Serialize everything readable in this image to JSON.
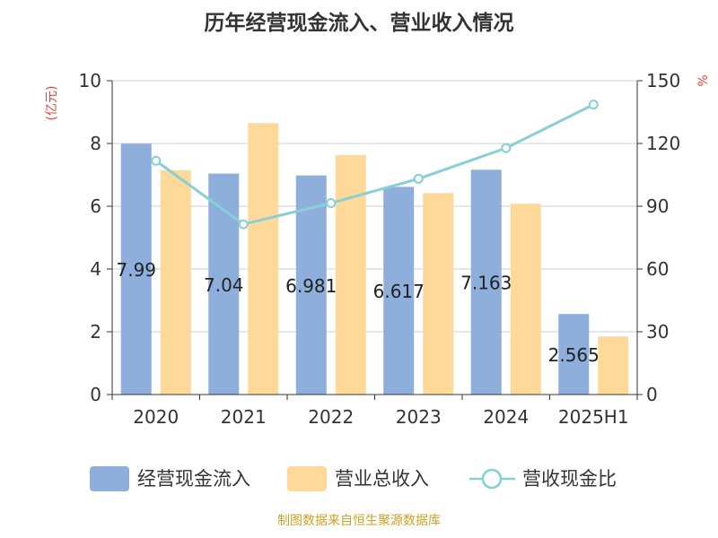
{
  "chart_data": {
    "type": "bar",
    "title": "历年经营现金流入、营业收入情况",
    "categories": [
      "2020",
      "2021",
      "2022",
      "2023",
      "2024",
      "2025H1"
    ],
    "left_axis": {
      "unit": "(亿元)",
      "ylim": [
        0,
        10
      ],
      "ticks": [
        "0",
        "2",
        "4",
        "6",
        "8",
        "10"
      ]
    },
    "right_axis": {
      "unit": "%",
      "ylim": [
        0,
        150
      ],
      "ticks": [
        "0",
        "30",
        "60",
        "90",
        "120",
        "150"
      ]
    },
    "series": [
      {
        "name": "经营现金流入",
        "type": "bar",
        "axis": "left",
        "color": "#8eaedc",
        "values": [
          7.99,
          7.04,
          6.981,
          6.617,
          7.163,
          2.565
        ],
        "labels": [
          "7.99",
          "7.04",
          "6.981",
          "6.617",
          "7.163",
          "2.565"
        ]
      },
      {
        "name": "营业总收入",
        "type": "bar",
        "axis": "left",
        "color": "#ffd99a",
        "values": [
          7.15,
          8.65,
          7.63,
          6.42,
          6.08,
          1.85
        ]
      },
      {
        "name": "营收现金比",
        "type": "line",
        "axis": "right",
        "color": "#86d0d6",
        "values": [
          111.7,
          81.4,
          91.5,
          103.1,
          117.8,
          138.6
        ]
      }
    ],
    "grid": true,
    "legend_position": "bottom"
  },
  "source": "制图数据来自恒生聚源数据库"
}
